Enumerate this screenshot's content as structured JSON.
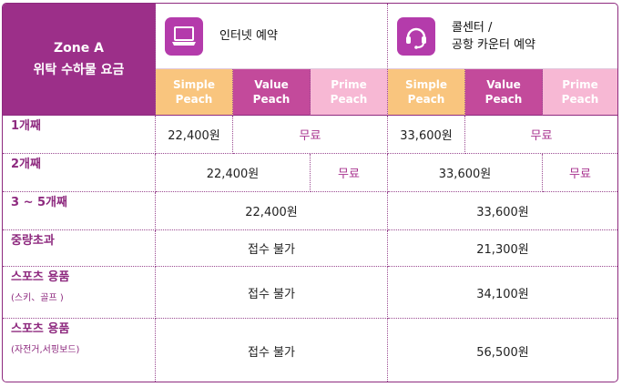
{
  "header": {
    "zone_line1": "Zone A",
    "zone_line2": "위탁 수하물 요금",
    "internet_title": "인터넷 예약",
    "call_title_line1": "콜센터 /",
    "call_title_line2": "공항 카운터 예약",
    "internet_icon": "laptop-icon",
    "call_icon": "headset-icon"
  },
  "plans": {
    "simple_l1": "Simple",
    "simple_l2": "Peach",
    "value_l1": "Value",
    "value_l2": "Peach",
    "prime_l1": "Prime",
    "prime_l2": "Peach"
  },
  "rows": {
    "r1": {
      "label": "1개째",
      "i_simple": "22,400원",
      "i_vp": "무료",
      "c_simple": "33,600원",
      "c_vp": "무료"
    },
    "r2": {
      "label": "2개째",
      "i_sv": "22,400원",
      "i_prime": "무료",
      "c_sv": "33,600원",
      "c_prime": "무료"
    },
    "r3": {
      "label": "3 ~ 5개째",
      "internet": "22,400원",
      "call": "33,600원"
    },
    "r4": {
      "label": "중량초과",
      "internet": "접수 불가",
      "call": "21,300원"
    },
    "r5": {
      "label": "스포츠 용품",
      "sub": "(스키、골프 )",
      "internet": "접수 불가",
      "call": "34,100원"
    },
    "r6": {
      "label": "스포츠 용품",
      "sub": "(자전거,서핑보드)",
      "internet": "접수 불가",
      "call": "56,500원"
    }
  },
  "colors": {
    "brand": "#9c2f89",
    "simple": "#f9c57e",
    "value": "#c34a9b",
    "prime": "#f7b8d4"
  }
}
